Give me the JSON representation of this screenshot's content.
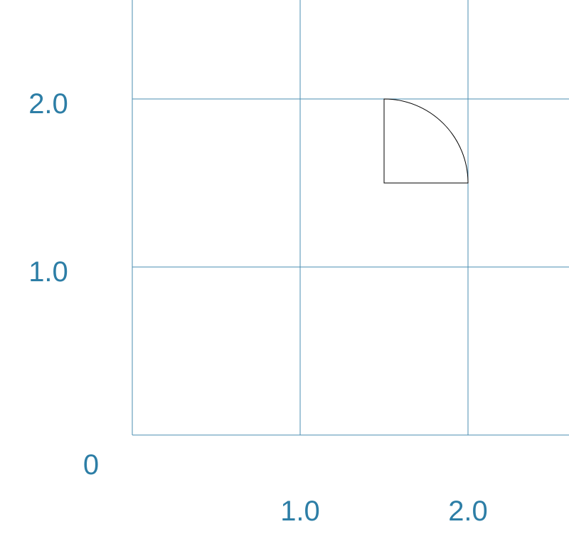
{
  "diagram": {
    "colors": {
      "grid": "#4a8db0",
      "label": "#2d7ea6",
      "shape": "#000000",
      "background": "#ffffff"
    },
    "axes": {
      "origin_label": "0",
      "x_ticks": [
        {
          "value": 1.0,
          "label": "1.0"
        },
        {
          "value": 2.0,
          "label": "2.0"
        }
      ],
      "y_ticks": [
        {
          "value": 1.0,
          "label": "1.0"
        },
        {
          "value": 2.0,
          "label": "2.0"
        }
      ]
    },
    "quarter_circle": {
      "center": [
        1.5,
        1.5
      ],
      "radius": 0.5,
      "quadrant": "upper-right"
    }
  }
}
